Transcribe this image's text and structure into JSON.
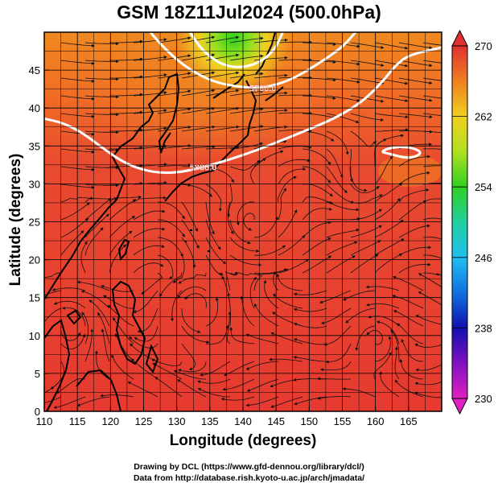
{
  "title": "GSM 18Z11Jul2024 (500.0hPa)",
  "xaxis": {
    "label": "Longitude (degrees)",
    "min": 110,
    "max": 170,
    "ticks": [
      110,
      115,
      120,
      125,
      130,
      135,
      140,
      145,
      150,
      155,
      160,
      165
    ]
  },
  "yaxis": {
    "label": "Latitude  (degrees)",
    "min": 0,
    "max": 50,
    "ticks": [
      0,
      5,
      10,
      15,
      20,
      25,
      30,
      35,
      40,
      45
    ]
  },
  "colorbar": {
    "min": 230,
    "max": 270,
    "labels": [
      "270",
      "262",
      "254",
      "246",
      "238",
      "230"
    ],
    "stops": [
      {
        "v": 230,
        "color": "#e020c0"
      },
      {
        "v": 234,
        "color": "#8010c0"
      },
      {
        "v": 238,
        "color": "#1010b0"
      },
      {
        "v": 242,
        "color": "#1070e0"
      },
      {
        "v": 246,
        "color": "#20c0f0"
      },
      {
        "v": 250,
        "color": "#20d0a0"
      },
      {
        "v": 254,
        "color": "#30d020"
      },
      {
        "v": 258,
        "color": "#b0e020"
      },
      {
        "v": 262,
        "color": "#f0d020"
      },
      {
        "v": 266,
        "color": "#f08020"
      },
      {
        "v": 270,
        "color": "#e03030"
      }
    ]
  },
  "contours": [
    {
      "label": "5880.0",
      "points": [
        [
          110,
          38.6
        ],
        [
          113,
          38.0
        ],
        [
          116,
          36.6
        ],
        [
          119,
          34.6
        ],
        [
          122,
          32.8
        ],
        [
          125,
          31.8
        ],
        [
          128,
          31.4
        ],
        [
          131,
          31.6
        ],
        [
          134,
          32.2
        ],
        [
          138,
          33.2
        ],
        [
          142,
          34.4
        ],
        [
          146,
          35.8
        ],
        [
          150,
          37.2
        ],
        [
          154,
          38.7
        ],
        [
          158,
          40.8
        ],
        [
          161,
          43.4
        ],
        [
          163,
          45.6
        ],
        [
          165,
          47.0
        ],
        [
          170,
          48.0
        ]
      ]
    },
    {
      "label": "5700.0",
      "points": [
        [
          126,
          50
        ],
        [
          128,
          48
        ],
        [
          131,
          45.6
        ],
        [
          135,
          43.6
        ],
        [
          139,
          42.8
        ],
        [
          143,
          42.6
        ],
        [
          147,
          43.6
        ],
        [
          151,
          45.6
        ],
        [
          155,
          48
        ],
        [
          157,
          50
        ]
      ]
    },
    {
      "label": "",
      "points": [
        [
          132,
          50
        ],
        [
          134,
          47.4
        ],
        [
          137,
          45.6
        ],
        [
          140,
          45.3
        ],
        [
          143,
          46.2
        ],
        [
          145,
          48
        ],
        [
          146,
          50
        ]
      ]
    },
    {
      "label": "",
      "points": [
        [
          161,
          34.2
        ],
        [
          162.8,
          33.8
        ],
        [
          164.6,
          33.4
        ],
        [
          166.2,
          33.6
        ],
        [
          167,
          34.2
        ],
        [
          165.4,
          34.8
        ],
        [
          163.4,
          34.9
        ],
        [
          161.6,
          34.6
        ],
        [
          161,
          34.2
        ]
      ]
    }
  ],
  "credits": {
    "line1": "Drawing by DCL (https://www.gfd-dennou.org/library/dcl/)",
    "line2": "Data from http://database.rish.kyoto-u.ac.jp/arch/jmadata/"
  }
}
